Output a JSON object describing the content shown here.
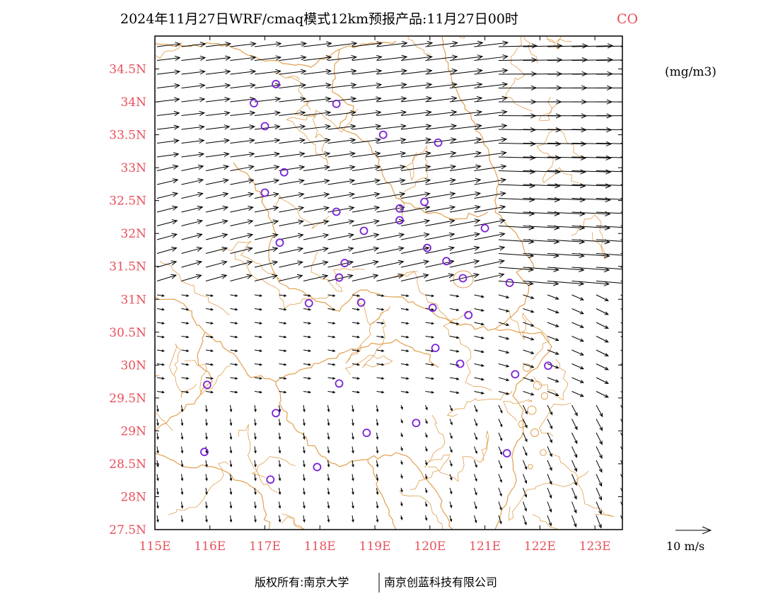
{
  "title": {
    "main": "2024年11月27日WRF/cmaq模式12km预报产品:11月27日00时",
    "variable": "CO"
  },
  "unit_label": "(mg/m3)",
  "legend": {
    "reference_vector_label": "10 m/s",
    "reference_speed": 10
  },
  "footer": {
    "left": "版权所有:南京大学",
    "right": "南京创蓝科技有限公司"
  },
  "colors": {
    "axis_label": "#e8505b",
    "boundary": "#e0a050",
    "station_marker": "#7a22d4",
    "wind_vector": "#000000",
    "frame": "#000000"
  },
  "map_extent": {
    "lon_min": 115,
    "lon_max": 123.5,
    "lat_min": 27.5,
    "lat_max": 35
  },
  "x_ticks": [
    {
      "value": 115,
      "label": "115E"
    },
    {
      "value": 116,
      "label": "116E"
    },
    {
      "value": 117,
      "label": "117E"
    },
    {
      "value": 118,
      "label": "118E"
    },
    {
      "value": 119,
      "label": "119E"
    },
    {
      "value": 120,
      "label": "120E"
    },
    {
      "value": 121,
      "label": "121E"
    },
    {
      "value": 122,
      "label": "122E"
    },
    {
      "value": 123,
      "label": "123E"
    }
  ],
  "y_ticks": [
    {
      "value": 27.5,
      "label": "27.5N"
    },
    {
      "value": 28,
      "label": "28N"
    },
    {
      "value": 28.5,
      "label": "28.5N"
    },
    {
      "value": 29,
      "label": "29N"
    },
    {
      "value": 29.5,
      "label": "29.5N"
    },
    {
      "value": 30,
      "label": "30N"
    },
    {
      "value": 30.5,
      "label": "30.5N"
    },
    {
      "value": 31,
      "label": "31N"
    },
    {
      "value": 31.5,
      "label": "31.5N"
    },
    {
      "value": 32,
      "label": "32N"
    },
    {
      "value": 32.5,
      "label": "32.5N"
    },
    {
      "value": 33,
      "label": "33N"
    },
    {
      "value": 33.5,
      "label": "33.5N"
    },
    {
      "value": 34,
      "label": "34N"
    },
    {
      "value": 34.5,
      "label": "34.5N"
    }
  ],
  "stations": [
    [
      117.2,
      34.27
    ],
    [
      116.8,
      33.98
    ],
    [
      118.3,
      33.97
    ],
    [
      117.0,
      33.63
    ],
    [
      119.15,
      33.5
    ],
    [
      120.15,
      33.38
    ],
    [
      117.35,
      32.93
    ],
    [
      117.0,
      32.62
    ],
    [
      119.9,
      32.48
    ],
    [
      119.45,
      32.38
    ],
    [
      118.3,
      32.33
    ],
    [
      119.45,
      32.2
    ],
    [
      121.0,
      32.08
    ],
    [
      118.8,
      32.04
    ],
    [
      117.27,
      31.86
    ],
    [
      119.95,
      31.78
    ],
    [
      120.3,
      31.58
    ],
    [
      118.45,
      31.55
    ],
    [
      118.35,
      31.33
    ],
    [
      120.6,
      31.32
    ],
    [
      121.45,
      31.25
    ],
    [
      117.8,
      30.94
    ],
    [
      118.75,
      30.95
    ],
    [
      120.05,
      30.87
    ],
    [
      120.7,
      30.76
    ],
    [
      120.1,
      30.26
    ],
    [
      120.55,
      30.02
    ],
    [
      122.15,
      29.99
    ],
    [
      121.55,
      29.86
    ],
    [
      115.95,
      29.7
    ],
    [
      118.35,
      29.72
    ],
    [
      117.2,
      29.27
    ],
    [
      119.75,
      29.12
    ],
    [
      118.85,
      28.97
    ],
    [
      115.9,
      28.68
    ],
    [
      121.4,
      28.66
    ],
    [
      117.95,
      28.45
    ],
    [
      117.1,
      28.26
    ]
  ]
}
